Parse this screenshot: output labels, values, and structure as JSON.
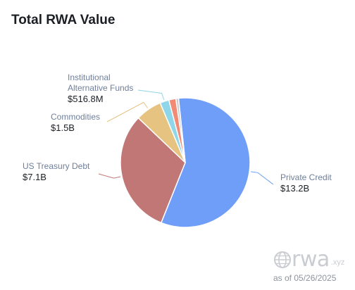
{
  "title": "Total RWA Value",
  "chart_data": {
    "type": "pie",
    "title": "Total RWA Value",
    "slices": [
      {
        "name": "Private Credit",
        "value_label": "$13.2B",
        "value": 13.2,
        "color": "#6f9ef8",
        "labeled": true
      },
      {
        "name": "US Treasury Debt",
        "value_label": "$7.1B",
        "value": 7.1,
        "color": "#c27777",
        "labeled": true
      },
      {
        "name": "Commodities",
        "value_label": "$1.5B",
        "value": 1.5,
        "color": "#e6c381",
        "labeled": true
      },
      {
        "name": "Institutional Alternative Funds",
        "value_label": "$516.8M",
        "value": 0.5168,
        "color": "#8fd6e8",
        "labeled": true
      },
      {
        "name": "",
        "value_label": "",
        "value": 0.4,
        "color": "#f28b76",
        "labeled": false
      },
      {
        "name": "",
        "value_label": "",
        "value": 0.15,
        "color": "#c9c9c9",
        "labeled": false
      }
    ]
  },
  "watermark": {
    "brand": "rwa",
    "tld": ".xyz",
    "date_text": "as of 05/26/2025",
    "icon": "globe-icon"
  }
}
